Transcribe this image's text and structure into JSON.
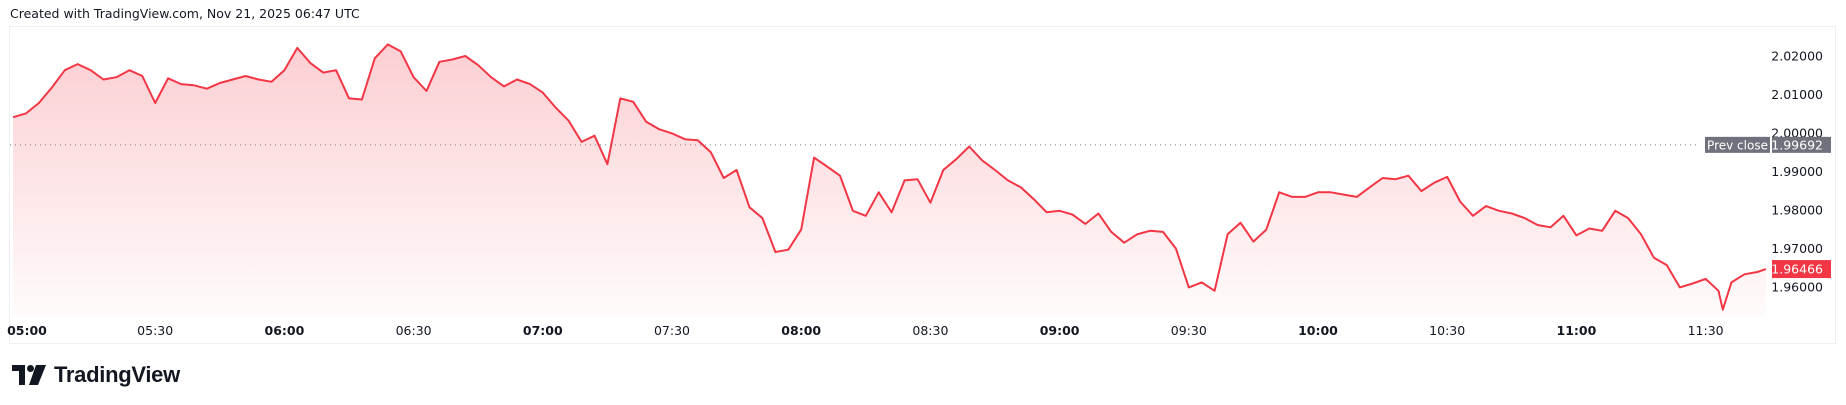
{
  "header": {
    "text": "Created with TradingView.com, Nov 21, 2025 06:47 UTC"
  },
  "branding": {
    "logo_text": "TradingView"
  },
  "colors": {
    "line": "#f23645",
    "prev_close_label": "#6f727c",
    "last_price_label": "#f23645",
    "text": "#131722"
  },
  "chart_data": {
    "type": "area",
    "title": "",
    "xlabel": "",
    "ylabel": "",
    "ylim": [
      1.952,
      2.026
    ],
    "grid": false,
    "x_ticks": [
      {
        "label": "05:00",
        "bold": true
      },
      {
        "label": "05:30",
        "bold": false
      },
      {
        "label": "06:00",
        "bold": true
      },
      {
        "label": "06:30",
        "bold": false
      },
      {
        "label": "07:00",
        "bold": true
      },
      {
        "label": "07:30",
        "bold": false
      },
      {
        "label": "08:00",
        "bold": true
      },
      {
        "label": "08:30",
        "bold": false
      },
      {
        "label": "09:00",
        "bold": true
      },
      {
        "label": "09:30",
        "bold": false
      },
      {
        "label": "10:00",
        "bold": true
      },
      {
        "label": "10:30",
        "bold": false
      },
      {
        "label": "11:00",
        "bold": true
      },
      {
        "label": "11:30",
        "bold": false
      }
    ],
    "y_ticks": [
      "2.02000",
      "2.01000",
      "2.00000",
      "1.99000",
      "1.98000",
      "1.97000",
      "1.96000"
    ],
    "prev_close": {
      "label": "Prev close",
      "value": "1.99692"
    },
    "last_price": {
      "value": "1.96466"
    },
    "points": [
      [
        "04:57",
        2.0041
      ],
      [
        "05:00",
        2.0051
      ],
      [
        "05:03",
        2.0078
      ],
      [
        "05:06",
        2.0118
      ],
      [
        "05:09",
        2.0163
      ],
      [
        "05:12",
        2.0179
      ],
      [
        "05:15",
        2.0163
      ],
      [
        "05:18",
        2.0139
      ],
      [
        "05:21",
        2.0145
      ],
      [
        "05:24",
        2.0163
      ],
      [
        "05:27",
        2.0148
      ],
      [
        "05:30",
        2.0078
      ],
      [
        "05:33",
        2.0142
      ],
      [
        "05:36",
        2.0127
      ],
      [
        "05:39",
        2.0124
      ],
      [
        "05:42",
        2.0115
      ],
      [
        "05:45",
        2.013
      ],
      [
        "05:48",
        2.0139
      ],
      [
        "05:51",
        2.0148
      ],
      [
        "05:54",
        2.0139
      ],
      [
        "05:57",
        2.0133
      ],
      [
        "06:00",
        2.0163
      ],
      [
        "06:03",
        2.0221
      ],
      [
        "06:06",
        2.0182
      ],
      [
        "06:09",
        2.0157
      ],
      [
        "06:12",
        2.0163
      ],
      [
        "06:15",
        2.009
      ],
      [
        "06:18",
        2.0087
      ],
      [
        "06:21",
        2.0194
      ],
      [
        "06:24",
        2.023
      ],
      [
        "06:27",
        2.0212
      ],
      [
        "06:30",
        2.0145
      ],
      [
        "06:33",
        2.0109
      ],
      [
        "06:36",
        2.0185
      ],
      [
        "06:39",
        2.0191
      ],
      [
        "06:42",
        2.02
      ],
      [
        "06:45",
        2.0176
      ],
      [
        "06:48",
        2.0145
      ],
      [
        "06:51",
        2.0121
      ],
      [
        "06:54",
        2.0139
      ],
      [
        "06:57",
        2.0127
      ],
      [
        "07:00",
        2.0105
      ],
      [
        "07:03",
        2.0066
      ],
      [
        "07:06",
        2.0032
      ],
      [
        "07:09",
        1.9977
      ],
      [
        "07:12",
        1.9993
      ],
      [
        "07:15",
        1.9919
      ],
      [
        "07:18",
        2.009
      ],
      [
        "07:21",
        2.0081
      ],
      [
        "07:24",
        2.0029
      ],
      [
        "07:27",
        2.001
      ],
      [
        "07:30",
        1.9999
      ],
      [
        "07:33",
        1.9984
      ],
      [
        "07:36",
        1.9981
      ],
      [
        "07:39",
        1.995
      ],
      [
        "07:42",
        1.9883
      ],
      [
        "07:45",
        1.9904
      ],
      [
        "07:48",
        1.9807
      ],
      [
        "07:51",
        1.9779
      ],
      [
        "07:54",
        1.9691
      ],
      [
        "07:57",
        1.9697
      ],
      [
        "08:00",
        1.9749
      ],
      [
        "08:03",
        1.9936
      ],
      [
        "08:06",
        1.9913
      ],
      [
        "08:09",
        1.9889
      ],
      [
        "08:12",
        1.9798
      ],
      [
        "08:15",
        1.9785
      ],
      [
        "08:18",
        1.9846
      ],
      [
        "08:21",
        1.9794
      ],
      [
        "08:24",
        1.9877
      ],
      [
        "08:27",
        1.988
      ],
      [
        "08:30",
        1.9819
      ],
      [
        "08:33",
        1.9904
      ],
      [
        "08:36",
        1.9932
      ],
      [
        "08:39",
        1.9965
      ],
      [
        "08:42",
        1.9929
      ],
      [
        "08:45",
        1.9904
      ],
      [
        "08:48",
        1.9877
      ],
      [
        "08:51",
        1.9859
      ],
      [
        "08:54",
        1.9828
      ],
      [
        "08:57",
        1.9794
      ],
      [
        "09:00",
        1.9798
      ],
      [
        "09:03",
        1.9788
      ],
      [
        "09:06",
        1.9764
      ],
      [
        "09:09",
        1.9791
      ],
      [
        "09:12",
        1.9743
      ],
      [
        "09:15",
        1.9715
      ],
      [
        "09:18",
        1.9737
      ],
      [
        "09:21",
        1.9746
      ],
      [
        "09:24",
        1.9743
      ],
      [
        "09:27",
        1.97
      ],
      [
        "09:30",
        1.9599
      ],
      [
        "09:33",
        1.9612
      ],
      [
        "09:36",
        1.959
      ],
      [
        "09:39",
        1.9737
      ],
      [
        "09:42",
        1.9767
      ],
      [
        "09:45",
        1.9718
      ],
      [
        "09:48",
        1.9749
      ],
      [
        "09:51",
        1.9846
      ],
      [
        "09:54",
        1.9834
      ],
      [
        "09:57",
        1.9834
      ],
      [
        "10:00",
        1.9846
      ],
      [
        "10:03",
        1.9846
      ],
      [
        "10:06",
        1.984
      ],
      [
        "10:09",
        1.9834
      ],
      [
        "10:12",
        1.9859
      ],
      [
        "10:15",
        1.9883
      ],
      [
        "10:18",
        1.988
      ],
      [
        "10:21",
        1.9889
      ],
      [
        "10:24",
        1.9849
      ],
      [
        "10:27",
        1.9871
      ],
      [
        "10:30",
        1.9886
      ],
      [
        "10:33",
        1.9822
      ],
      [
        "10:36",
        1.9785
      ],
      [
        "10:39",
        1.981
      ],
      [
        "10:42",
        1.9798
      ],
      [
        "10:45",
        1.9791
      ],
      [
        "10:48",
        1.9779
      ],
      [
        "10:51",
        1.9761
      ],
      [
        "10:54",
        1.9755
      ],
      [
        "10:57",
        1.9785
      ],
      [
        "11:00",
        1.9734
      ],
      [
        "11:03",
        1.9752
      ],
      [
        "11:06",
        1.9746
      ],
      [
        "11:09",
        1.9798
      ],
      [
        "11:12",
        1.9779
      ],
      [
        "11:15",
        1.9737
      ],
      [
        "11:18",
        1.9676
      ],
      [
        "11:21",
        1.9657
      ],
      [
        "11:24",
        1.9599
      ],
      [
        "11:27",
        1.9609
      ],
      [
        "11:30",
        1.9621
      ],
      [
        "11:33",
        1.959
      ],
      [
        "11:34",
        1.9541
      ],
      [
        "11:36",
        1.9612
      ],
      [
        "11:39",
        1.9633
      ],
      [
        "11:42",
        1.9639
      ],
      [
        "11:44",
        1.96466
      ]
    ]
  }
}
